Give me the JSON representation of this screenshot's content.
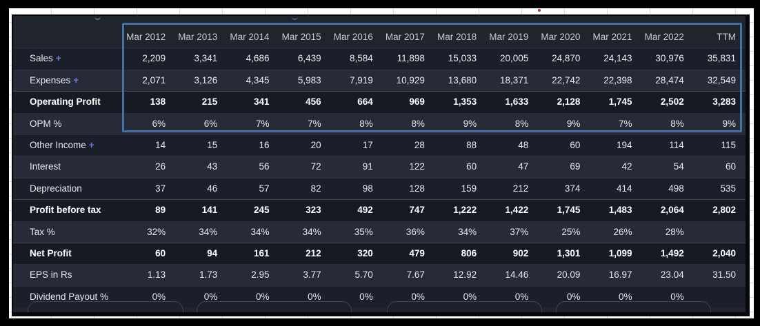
{
  "panel": {
    "name": "Profit & Loss results table"
  },
  "colors": {
    "frame": "#000000",
    "sheet_bg": "#ffffff",
    "gridline": "#d8dade",
    "panel_bg": "#20242d",
    "row_dark": "#1b1f29",
    "row_light": "#262b37",
    "row_bold": "#161a23",
    "header_text": "#c7ccd5",
    "cell_text": "#e6e9ef",
    "bold_text": "#ffffff",
    "expand_plus": "#6f74ee",
    "highlight_border": "#44719f"
  },
  "icons": {
    "expand_icon": "+"
  },
  "table": {
    "columns": [
      "Mar 2012",
      "Mar 2013",
      "Mar 2014",
      "Mar 2015",
      "Mar 2016",
      "Mar 2017",
      "Mar 2018",
      "Mar 2019",
      "Mar 2020",
      "Mar 2021",
      "Mar 2022",
      "TTM"
    ],
    "rows": [
      {
        "label": "Sales",
        "expandable": true,
        "variant": "dark",
        "values": [
          "2,209",
          "3,341",
          "4,686",
          "6,439",
          "8,584",
          "11,898",
          "15,033",
          "20,005",
          "24,870",
          "24,143",
          "30,976",
          "35,831"
        ]
      },
      {
        "label": "Expenses",
        "expandable": true,
        "variant": "light",
        "values": [
          "2,071",
          "3,126",
          "4,345",
          "5,983",
          "7,919",
          "10,929",
          "13,680",
          "18,371",
          "22,742",
          "22,398",
          "28,474",
          "32,549"
        ]
      },
      {
        "label": "Operating Profit",
        "expandable": false,
        "variant": "bold",
        "values": [
          "138",
          "215",
          "341",
          "456",
          "664",
          "969",
          "1,353",
          "1,633",
          "2,128",
          "1,745",
          "2,502",
          "3,283"
        ]
      },
      {
        "label": "OPM %",
        "expandable": false,
        "variant": "light",
        "values": [
          "6%",
          "6%",
          "7%",
          "7%",
          "8%",
          "8%",
          "9%",
          "8%",
          "9%",
          "7%",
          "8%",
          "9%"
        ]
      },
      {
        "label": "Other Income",
        "expandable": true,
        "variant": "dark",
        "values": [
          "14",
          "15",
          "16",
          "20",
          "17",
          "28",
          "88",
          "48",
          "60",
          "194",
          "114",
          "115"
        ]
      },
      {
        "label": "Interest",
        "expandable": false,
        "variant": "light",
        "values": [
          "26",
          "43",
          "56",
          "72",
          "91",
          "122",
          "60",
          "47",
          "69",
          "42",
          "54",
          "60"
        ]
      },
      {
        "label": "Depreciation",
        "expandable": false,
        "variant": "dark",
        "values": [
          "37",
          "46",
          "57",
          "82",
          "98",
          "128",
          "159",
          "212",
          "374",
          "414",
          "498",
          "535"
        ]
      },
      {
        "label": "Profit before tax",
        "expandable": false,
        "variant": "bold",
        "values": [
          "89",
          "141",
          "245",
          "323",
          "492",
          "747",
          "1,222",
          "1,422",
          "1,745",
          "1,483",
          "2,064",
          "2,802"
        ]
      },
      {
        "label": "Tax %",
        "expandable": false,
        "variant": "light",
        "values": [
          "32%",
          "34%",
          "34%",
          "34%",
          "35%",
          "36%",
          "34%",
          "37%",
          "25%",
          "26%",
          "28%",
          ""
        ]
      },
      {
        "label": "Net Profit",
        "expandable": false,
        "variant": "bold",
        "values": [
          "60",
          "94",
          "161",
          "212",
          "320",
          "479",
          "806",
          "902",
          "1,301",
          "1,099",
          "1,492",
          "2,040"
        ]
      },
      {
        "label": "EPS in Rs",
        "expandable": false,
        "variant": "light",
        "values": [
          "1.13",
          "1.73",
          "2.95",
          "3.77",
          "5.70",
          "7.67",
          "12.92",
          "14.46",
          "20.09",
          "16.97",
          "23.04",
          "31.50"
        ]
      },
      {
        "label": "Dividend Payout %",
        "expandable": false,
        "variant": "dark",
        "values": [
          "0%",
          "0%",
          "0%",
          "0%",
          "0%",
          "0%",
          "0%",
          "0%",
          "0%",
          "0%",
          "0%",
          ""
        ]
      }
    ]
  }
}
